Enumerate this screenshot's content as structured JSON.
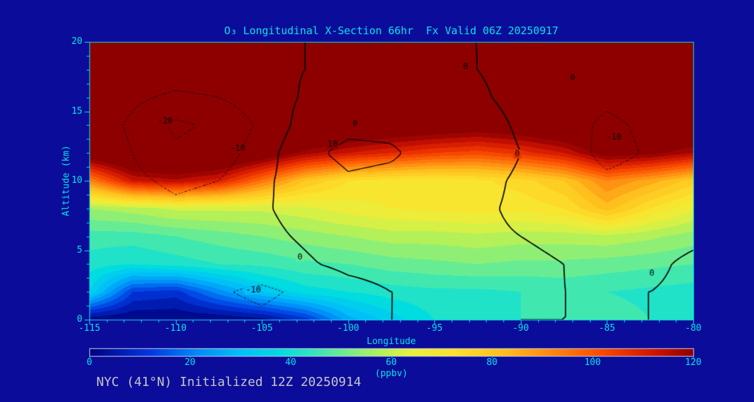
{
  "theme": {
    "background": "#0c0c9a",
    "axis_color": "#00e6e6",
    "footer_color": "#c6c6c6",
    "contour_line_color": "#000000",
    "colorbar_border": "#c9cfe0"
  },
  "title": "O₃ Longitudinal X-Section 66hr  Fx Valid 06Z 20250917",
  "footer": "NYC (41°N) Initialized 12Z 20250914",
  "chart_data": {
    "type": "heatmap",
    "title": "O₃ Longitudinal X-Section 66hr  Fx Valid 06Z 20250917",
    "xlabel": "Longitude",
    "ylabel": "Altitude (km)",
    "xlim": [
      -115,
      -80
    ],
    "ylim": [
      0,
      20
    ],
    "x_ticks": [
      -115,
      -110,
      -105,
      -100,
      -95,
      -90,
      -85,
      -80
    ],
    "y_ticks": [
      0,
      5,
      10,
      15,
      20
    ],
    "band_step": 4,
    "colormap_stops": [
      [
        0,
        "#000080"
      ],
      [
        12,
        "#0038e0"
      ],
      [
        22,
        "#0090f8"
      ],
      [
        30,
        "#00c0f8"
      ],
      [
        38,
        "#00dce0"
      ],
      [
        46,
        "#40e8b0"
      ],
      [
        52,
        "#7cee84"
      ],
      [
        58,
        "#b4f058"
      ],
      [
        64,
        "#e8f03c"
      ],
      [
        72,
        "#fce12c"
      ],
      [
        82,
        "#ffc01e"
      ],
      [
        92,
        "#ff8510"
      ],
      [
        102,
        "#f84800"
      ],
      [
        112,
        "#d01400"
      ],
      [
        120,
        "#8e0000"
      ]
    ],
    "grid_lons": [
      -115,
      -112.5,
      -110,
      -107.5,
      -105,
      -102.5,
      -100,
      -97.5,
      -95,
      -92.5,
      -90,
      -87.5,
      -85,
      -82.5,
      -80
    ],
    "grid_alts": [
      0,
      2,
      4,
      6,
      8,
      10,
      12,
      14,
      16,
      18,
      20
    ],
    "ozone_ppbv": [
      [
        0,
        0,
        0,
        0,
        2,
        10,
        26,
        34,
        40,
        42,
        44,
        48,
        46,
        44,
        42
      ],
      [
        36,
        12,
        10,
        22,
        32,
        38,
        40,
        42,
        43,
        43,
        44,
        45,
        44,
        43,
        42
      ],
      [
        42,
        40,
        42,
        44,
        45,
        47,
        48,
        50,
        51,
        52,
        51,
        51,
        50,
        49,
        48
      ],
      [
        46,
        46,
        48,
        50,
        52,
        54,
        56,
        58,
        58,
        59,
        58,
        58,
        59,
        57,
        54
      ],
      [
        56,
        58,
        61,
        61,
        61,
        63,
        66,
        68,
        69,
        70,
        69,
        72,
        82,
        72,
        65
      ],
      [
        92,
        112,
        115,
        110,
        95,
        80,
        72,
        70,
        69,
        71,
        74,
        80,
        92,
        86,
        78
      ],
      [
        128,
        135,
        138,
        136,
        128,
        118,
        112,
        108,
        104,
        102,
        106,
        112,
        124,
        122,
        116
      ],
      [
        140,
        140,
        140,
        140,
        140,
        138,
        134,
        130,
        128,
        126,
        128,
        132,
        138,
        138,
        134
      ],
      [
        140,
        140,
        140,
        140,
        140,
        140,
        140,
        140,
        140,
        140,
        140,
        140,
        140,
        140,
        140
      ],
      [
        140,
        140,
        140,
        140,
        140,
        140,
        140,
        140,
        140,
        140,
        140,
        140,
        140,
        140,
        140
      ],
      [
        140,
        140,
        140,
        140,
        140,
        140,
        140,
        140,
        140,
        140,
        140,
        140,
        140,
        140,
        140
      ]
    ],
    "overlay": {
      "name": "vertical-motion-contours",
      "levels": [
        -20,
        -10,
        0,
        10
      ],
      "values": [
        [
          0,
          -1,
          -3,
          -6,
          -8,
          -5,
          -2,
          0,
          1,
          1,
          0,
          0,
          0,
          0,
          1
        ],
        [
          0,
          -2,
          -6,
          -9,
          -12,
          -8,
          -3,
          0,
          1,
          1,
          1,
          0,
          0,
          0,
          1
        ],
        [
          -1,
          -3,
          -5,
          -6,
          -4,
          -1,
          2,
          3,
          2,
          1,
          1,
          0,
          -1,
          -1,
          1
        ],
        [
          -1,
          -4,
          -6,
          -5,
          -2,
          1,
          4,
          4,
          2,
          1,
          0,
          -1,
          -2,
          -2,
          -1
        ],
        [
          -1,
          -5,
          -8,
          -6,
          -1,
          3,
          6,
          5,
          3,
          1,
          -1,
          -3,
          -5,
          -4,
          -1
        ],
        [
          -2,
          -8,
          -12,
          -10,
          -2,
          5,
          9,
          8,
          5,
          2,
          -1,
          -4,
          -8,
          -6,
          -2
        ],
        [
          -2,
          -10,
          -18,
          -15,
          -5,
          8,
          12,
          11,
          7,
          4,
          0,
          -5,
          -13,
          -9,
          -3
        ],
        [
          -3,
          -12,
          -22,
          -18,
          -8,
          4,
          8,
          8,
          5,
          3,
          -1,
          -6,
          -12,
          -8,
          -3
        ],
        [
          -2,
          -8,
          -12,
          -10,
          -5,
          1,
          4,
          4,
          2,
          1,
          -2,
          -6,
          -8,
          -5,
          -2
        ],
        [
          -1,
          -3,
          -4,
          -4,
          -2,
          0,
          2,
          2,
          1,
          0,
          -2,
          -4,
          -5,
          -3,
          -1
        ],
        [
          0,
          -1,
          -2,
          -2,
          -1,
          0,
          1,
          1,
          0,
          0,
          -1,
          -2,
          -2,
          -1,
          0
        ]
      ]
    },
    "contour_labels": [
      {
        "text": "-20",
        "lon": -110.6,
        "alt": 14.3
      },
      {
        "text": "-10",
        "lon": -106.4,
        "alt": 12.3
      },
      {
        "text": "10",
        "lon": -100.9,
        "alt": 12.6
      },
      {
        "text": "0",
        "lon": -99.6,
        "alt": 14.1
      },
      {
        "text": "0",
        "lon": -93.2,
        "alt": 18.2
      },
      {
        "text": "0",
        "lon": -87.0,
        "alt": 17.4
      },
      {
        "text": "-10",
        "lon": -84.6,
        "alt": 13.1
      },
      {
        "text": "0",
        "lon": -90.2,
        "alt": 11.9
      },
      {
        "text": "0",
        "lon": -102.8,
        "alt": 4.5
      },
      {
        "text": "-10",
        "lon": -105.5,
        "alt": 2.1
      },
      {
        "text": "0",
        "lon": -82.4,
        "alt": 3.3
      }
    ],
    "colorbar": {
      "min": 0,
      "max": 120,
      "ticks": [
        0,
        20,
        40,
        60,
        80,
        100,
        120
      ],
      "label": "(ppbv)"
    }
  }
}
